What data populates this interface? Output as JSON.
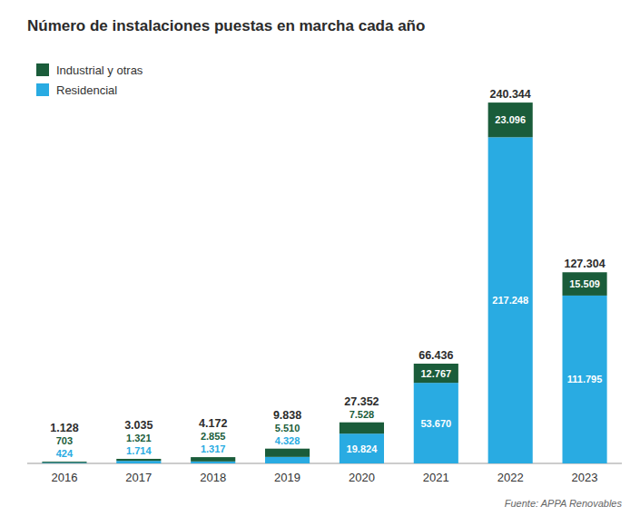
{
  "chart_data": {
    "type": "bar",
    "title": "Número de instalaciones puestas en marcha cada año",
    "source": "Fuente: APPA Renovables",
    "categories": [
      "2016",
      "2017",
      "2018",
      "2019",
      "2020",
      "2021",
      "2022",
      "2023"
    ],
    "series": [
      {
        "name": "Residencial",
        "color": "#29ABE2",
        "values": [
          424,
          1714,
          1317,
          4328,
          19824,
          53670,
          217248,
          111795
        ],
        "value_labels": [
          "424",
          "1.714",
          "1.317",
          "4.328",
          "19.824",
          "53.670",
          "217.248",
          "111.795"
        ]
      },
      {
        "name": "Industrial y otras",
        "color": "#1A5C3A",
        "values": [
          703,
          1321,
          2855,
          5510,
          7528,
          12767,
          23096,
          15509
        ],
        "value_labels": [
          "703",
          "1.321",
          "2.855",
          "5.510",
          "7.528",
          "12.767",
          "23.096",
          "15.509"
        ]
      }
    ],
    "totals": {
      "values": [
        1128,
        3035,
        4172,
        9838,
        27352,
        66436,
        240344,
        127304
      ],
      "value_labels": [
        "1.128",
        "3.035",
        "4.172",
        "9.838",
        "27.352",
        "66.436",
        "240.344",
        "127.304"
      ]
    },
    "ylim": [
      0,
      270000
    ],
    "stacked": true,
    "data_labels": true,
    "legend": "upper left",
    "tick_labels": "x",
    "grid": false
  }
}
